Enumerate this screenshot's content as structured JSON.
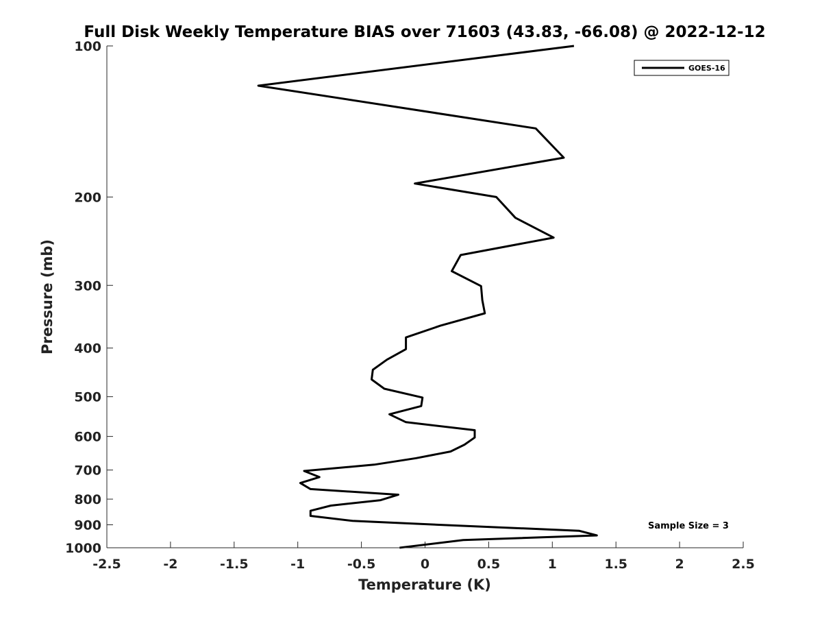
{
  "chart_data": {
    "type": "line",
    "title": "Full Disk Weekly Temperature BIAS over 71603 (43.83, -66.08) @ 2022-12-12",
    "xlabel": "Temperature (K)",
    "ylabel": "Pressure (mb)",
    "xlim": [
      -2.5,
      2.5
    ],
    "ylim": [
      100,
      1000
    ],
    "y_scale": "log",
    "y_reversed": true,
    "x_ticks": [
      "-2.5",
      "-2",
      "-1.5",
      "-1",
      "-0.5",
      "0",
      "0.5",
      "1",
      "1.5",
      "2",
      "2.5"
    ],
    "y_ticks": [
      "100",
      "200",
      "300",
      "400",
      "500",
      "600",
      "700",
      "800",
      "900",
      "1000"
    ],
    "grid": false,
    "legend_position": "top-right",
    "annotation": "Sample Size = 3",
    "series": [
      {
        "name": "GOES-16",
        "color": "#000000",
        "points": [
          {
            "t": 1.17,
            "p": 100
          },
          {
            "t": -1.31,
            "p": 120
          },
          {
            "t": 0.87,
            "p": 146
          },
          {
            "t": 1.09,
            "p": 167
          },
          {
            "t": -0.08,
            "p": 188
          },
          {
            "t": 0.56,
            "p": 200
          },
          {
            "t": 0.71,
            "p": 220
          },
          {
            "t": 1.01,
            "p": 241
          },
          {
            "t": 0.28,
            "p": 261
          },
          {
            "t": 0.21,
            "p": 281
          },
          {
            "t": 0.44,
            "p": 301
          },
          {
            "t": 0.45,
            "p": 321
          },
          {
            "t": 0.47,
            "p": 341
          },
          {
            "t": 0.12,
            "p": 361
          },
          {
            "t": -0.15,
            "p": 381
          },
          {
            "t": -0.15,
            "p": 402
          },
          {
            "t": -0.3,
            "p": 422
          },
          {
            "t": -0.41,
            "p": 442
          },
          {
            "t": -0.42,
            "p": 462
          },
          {
            "t": -0.32,
            "p": 482
          },
          {
            "t": -0.02,
            "p": 502
          },
          {
            "t": -0.03,
            "p": 522
          },
          {
            "t": -0.28,
            "p": 542
          },
          {
            "t": -0.15,
            "p": 562
          },
          {
            "t": 0.39,
            "p": 583
          },
          {
            "t": 0.39,
            "p": 603
          },
          {
            "t": 0.31,
            "p": 623
          },
          {
            "t": 0.2,
            "p": 643
          },
          {
            "t": -0.07,
            "p": 663
          },
          {
            "t": -0.4,
            "p": 683
          },
          {
            "t": -0.95,
            "p": 703
          },
          {
            "t": -0.83,
            "p": 723
          },
          {
            "t": -0.98,
            "p": 743
          },
          {
            "t": -0.9,
            "p": 764
          },
          {
            "t": -0.21,
            "p": 784
          },
          {
            "t": -0.35,
            "p": 804
          },
          {
            "t": -0.74,
            "p": 824
          },
          {
            "t": -0.9,
            "p": 844
          },
          {
            "t": -0.9,
            "p": 864
          },
          {
            "t": -0.57,
            "p": 884
          },
          {
            "t": 0.28,
            "p": 904
          },
          {
            "t": 1.21,
            "p": 925
          },
          {
            "t": 1.35,
            "p": 945
          },
          {
            "t": 0.3,
            "p": 965
          },
          {
            "t": -0.2,
            "p": 1000
          }
        ]
      }
    ]
  }
}
